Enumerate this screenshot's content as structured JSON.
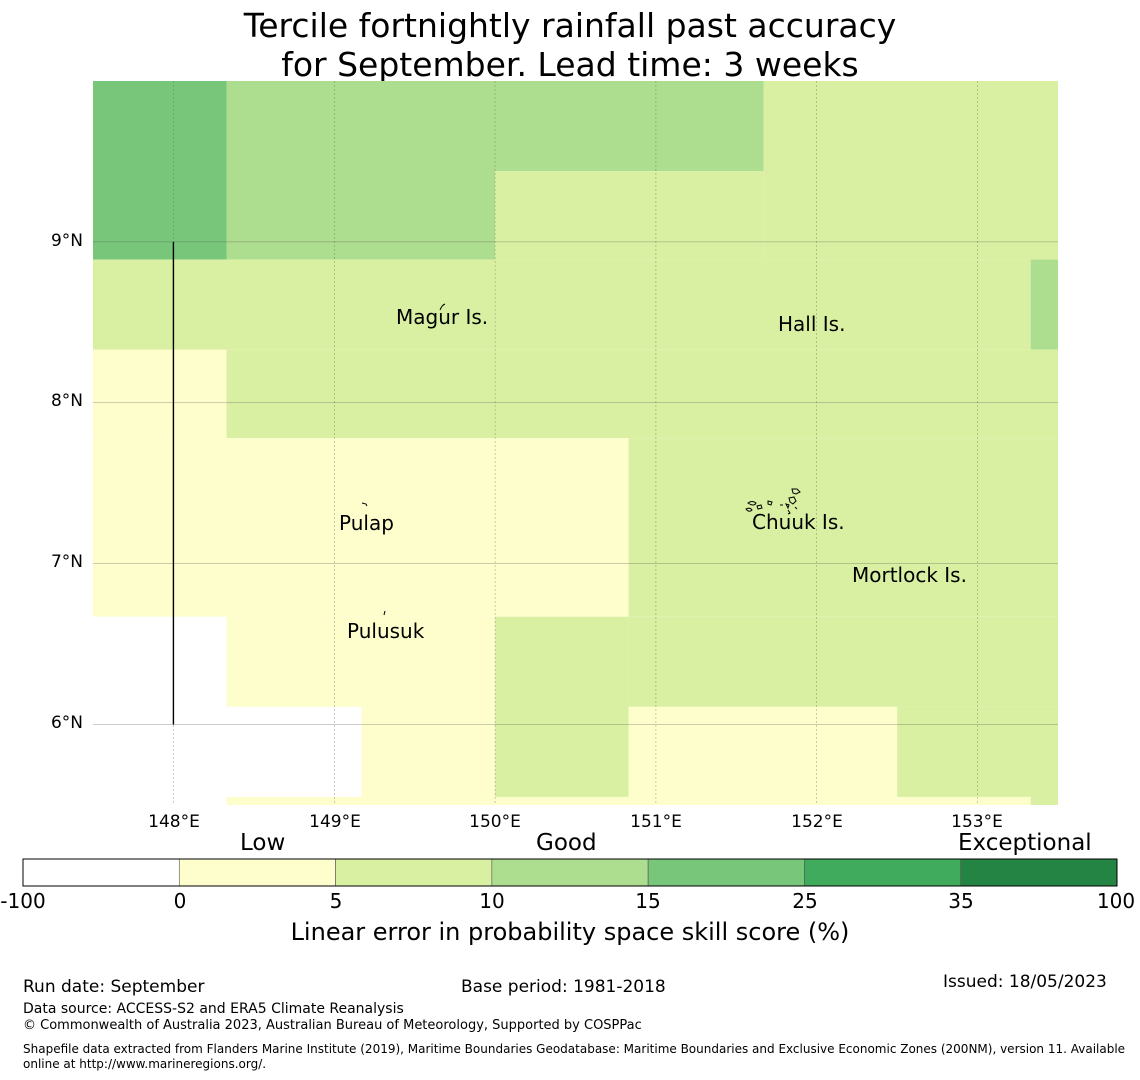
{
  "title": {
    "line1": "Tercile fortnightly rainfall past accuracy",
    "line2": "for September. Lead time: 3 weeks"
  },
  "map": {
    "lon_range": [
      147.5,
      153.5
    ],
    "lat_range": [
      5.5,
      10.0
    ],
    "x_ticks": [
      "148°E",
      "149°E",
      "150°E",
      "151°E",
      "152°E",
      "153°E"
    ],
    "y_ticks": [
      "9°N",
      "8°N",
      "7°N",
      "6°N"
    ],
    "grid_cells": [
      {
        "lon0": 147.5,
        "lon1": 148.33,
        "lat0": 8.89,
        "lat1": 10.0,
        "cls": 3
      },
      {
        "lon0": 148.33,
        "lon1": 150.0,
        "lat0": 8.89,
        "lat1": 10.0,
        "cls": 2
      },
      {
        "lon0": 150.0,
        "lon1": 151.67,
        "lat0": 9.44,
        "lat1": 10.0,
        "cls": 2
      },
      {
        "lon0": 150.0,
        "lon1": 151.67,
        "lat0": 8.89,
        "lat1": 9.44,
        "cls": 1
      },
      {
        "lon0": 151.67,
        "lon1": 153.5,
        "lat0": 8.89,
        "lat1": 10.0,
        "cls": 1
      },
      {
        "lon0": 147.5,
        "lon1": 148.33,
        "lat0": 8.33,
        "lat1": 8.89,
        "cls": 1
      },
      {
        "lon0": 148.33,
        "lon1": 153.33,
        "lat0": 8.33,
        "lat1": 8.89,
        "cls": 1
      },
      {
        "lon0": 153.33,
        "lon1": 153.5,
        "lat0": 8.33,
        "lat1": 8.89,
        "cls": 2
      },
      {
        "lon0": 147.5,
        "lon1": 148.33,
        "lat0": 7.78,
        "lat1": 8.33,
        "cls": 0
      },
      {
        "lon0": 148.33,
        "lon1": 153.5,
        "lat0": 7.78,
        "lat1": 8.33,
        "cls": 1
      },
      {
        "lon0": 147.5,
        "lon1": 150.83,
        "lat0": 6.67,
        "lat1": 7.78,
        "cls": 0
      },
      {
        "lon0": 150.83,
        "lon1": 153.5,
        "lat0": 6.67,
        "lat1": 7.78,
        "cls": 1
      },
      {
        "lon0": 147.5,
        "lon1": 148.33,
        "lat0": 5.5,
        "lat1": 6.67,
        "cls": -1
      },
      {
        "lon0": 148.33,
        "lon1": 150.0,
        "lat0": 6.11,
        "lat1": 6.67,
        "cls": 0
      },
      {
        "lon0": 148.33,
        "lon1": 149.17,
        "lat0": 5.5,
        "lat1": 6.11,
        "cls": -1
      },
      {
        "lon0": 148.33,
        "lon1": 149.17,
        "lat0": 5.5,
        "lat1": 5.55,
        "cls": 0
      },
      {
        "lon0": 149.17,
        "lon1": 150.0,
        "lat0": 5.5,
        "lat1": 6.11,
        "cls": 0
      },
      {
        "lon0": 150.0,
        "lon1": 150.83,
        "lat0": 5.55,
        "lat1": 6.67,
        "cls": 1
      },
      {
        "lon0": 150.0,
        "lon1": 150.83,
        "lat0": 5.5,
        "lat1": 5.55,
        "cls": 0
      },
      {
        "lon0": 150.83,
        "lon1": 153.5,
        "lat0": 6.11,
        "lat1": 6.67,
        "cls": 1
      },
      {
        "lon0": 150.83,
        "lon1": 152.5,
        "lat0": 5.5,
        "lat1": 6.11,
        "cls": 0
      },
      {
        "lon0": 152.5,
        "lon1": 153.5,
        "lat0": 5.55,
        "lat1": 6.11,
        "cls": 1
      },
      {
        "lon0": 152.5,
        "lon1": 153.33,
        "lat0": 5.5,
        "lat1": 5.55,
        "cls": 0
      },
      {
        "lon0": 153.33,
        "lon1": 153.5,
        "lat0": 5.5,
        "lat1": 5.55,
        "cls": 1
      }
    ],
    "boundary_line": {
      "lon": 148.0,
      "lat0": 6.0,
      "lat1": 9.0
    },
    "places": [
      {
        "name": "Magur Is.",
        "lon": 149.68,
        "lat": 8.55
      },
      {
        "name": "Hall Is.",
        "lon": 151.97,
        "lat": 8.51
      },
      {
        "name": "Pulap",
        "lon": 149.2,
        "lat": 7.26
      },
      {
        "name": "Chuuk Is.",
        "lon": 151.85,
        "lat": 7.27
      },
      {
        "name": "Mortlock Is.",
        "lon": 152.6,
        "lat": 6.94
      },
      {
        "name": "Pulusuk",
        "lon": 149.33,
        "lat": 6.6
      }
    ]
  },
  "colorbar": {
    "categories": [
      "Low",
      "Good",
      "Exceptional"
    ],
    "ticks": [
      "-100",
      "0",
      "5",
      "10",
      "15",
      "25",
      "35",
      "100"
    ],
    "colors": [
      "#ffffff",
      "#fefecc",
      "#d9f0a3",
      "#addd8e",
      "#78c679",
      "#41ab5d",
      "#238443"
    ],
    "label": "Linear error in probability space skill score (%)"
  },
  "footer": {
    "run_date": "Run date: September",
    "base_period": "Base period: 1981-2018",
    "issued": "Issued: 18/05/2023",
    "data_source": "Data source: ACCESS-S2 and ERA5 Climate Reanalysis",
    "copyright": "© Commonwealth of Australia 2023, Australian Bureau of Meteorology, Supported by COSPPac",
    "shapefile": "Shapefile data extracted from Flanders Marine Institute (2019), Maritime Boundaries Geodatabase: Maritime Boundaries and Exclusive Economic Zones (200NM), version 11. Available online at http://www.marineregions.org/."
  }
}
